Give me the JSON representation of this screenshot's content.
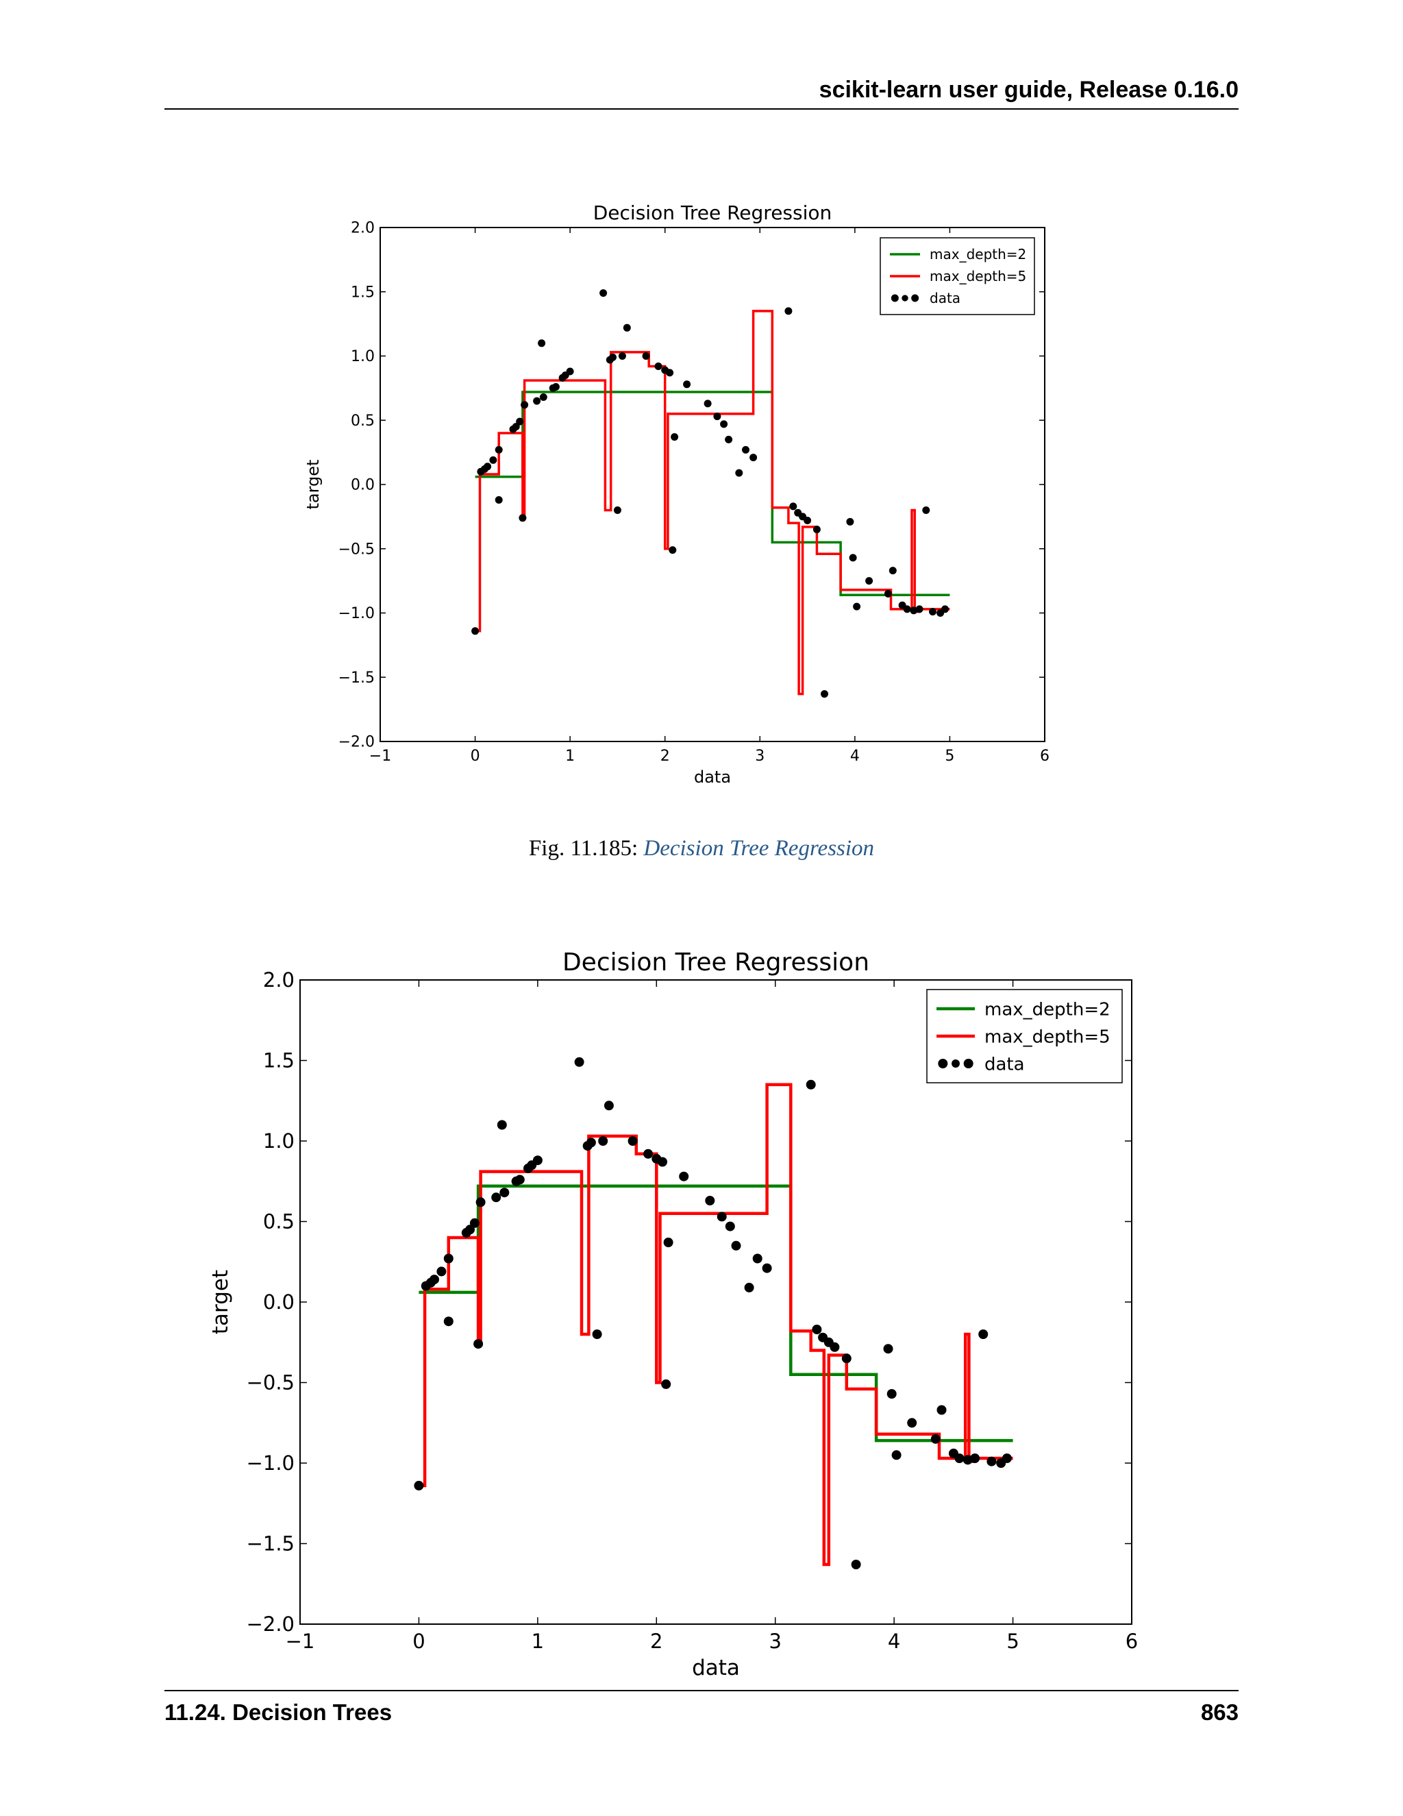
{
  "header": {
    "title": "scikit-learn user guide, Release 0.16.0"
  },
  "figure1": {
    "caption_prefix": "Fig.   11.185: ",
    "caption_link": "Decision Tree Regression"
  },
  "footer": {
    "section": "11.24.  Decision Trees",
    "page": "863"
  },
  "colors": {
    "depth2": "#008000",
    "depth5": "#ff0000",
    "data": "#000000",
    "caption_link": "#2a5a8a"
  },
  "chart_data": [
    {
      "type": "line",
      "title": "Decision Tree Regression",
      "xlabel": "data",
      "ylabel": "target",
      "xlim": [
        -1,
        6
      ],
      "ylim": [
        -2.0,
        2.0
      ],
      "xticks": [
        -1,
        0,
        1,
        2,
        3,
        4,
        5,
        6
      ],
      "yticks": [
        -2.0,
        -1.5,
        -1.0,
        -0.5,
        0.0,
        0.5,
        1.0,
        1.5,
        2.0
      ],
      "legend_position": "top-right",
      "series": [
        {
          "name": "max_depth=2",
          "kind": "step",
          "color": "#008000",
          "x": [
            0.0,
            0.5,
            0.5,
            3.13,
            3.13,
            3.85,
            3.85,
            5.0
          ],
          "y": [
            0.06,
            0.06,
            0.72,
            0.72,
            -0.45,
            -0.45,
            -0.86,
            -0.86
          ]
        },
        {
          "name": "max_depth=5",
          "kind": "step",
          "color": "#ff0000",
          "x": [
            0.0,
            0.05,
            0.05,
            0.25,
            0.25,
            0.5,
            0.5,
            0.52,
            0.52,
            1.37,
            1.37,
            1.43,
            1.43,
            1.83,
            1.83,
            2.0,
            2.0,
            2.03,
            2.03,
            2.07,
            2.07,
            2.93,
            2.93,
            3.13,
            3.13,
            3.3,
            3.3,
            3.41,
            3.41,
            3.45,
            3.45,
            3.6,
            3.6,
            3.85,
            3.85,
            4.38,
            4.38,
            4.6,
            4.6,
            4.63,
            4.63,
            4.68,
            4.68,
            5.0
          ],
          "y": [
            -1.14,
            -1.14,
            0.08,
            0.08,
            0.4,
            0.4,
            -0.26,
            -0.26,
            0.81,
            0.81,
            -0.2,
            -0.2,
            1.03,
            1.03,
            0.92,
            0.92,
            -0.5,
            -0.5,
            0.55,
            0.55,
            0.55,
            0.55,
            1.35,
            1.35,
            -0.18,
            -0.18,
            -0.3,
            -0.3,
            -1.63,
            -1.63,
            -0.33,
            -0.33,
            -0.54,
            -0.54,
            -0.82,
            -0.82,
            -0.97,
            -0.97,
            -0.2,
            -0.2,
            -0.99,
            -0.99,
            -0.97,
            -0.97
          ]
        },
        {
          "name": "data",
          "kind": "scatter",
          "color": "#000000",
          "x": [
            0.0,
            0.06,
            0.1,
            0.13,
            0.19,
            0.25,
            0.25,
            0.4,
            0.43,
            0.47,
            0.5,
            0.52,
            0.65,
            0.7,
            0.72,
            0.82,
            0.85,
            0.92,
            0.95,
            1.0,
            1.35,
            1.42,
            1.45,
            1.5,
            1.55,
            1.6,
            1.8,
            1.93,
            2.0,
            2.05,
            2.08,
            2.1,
            2.23,
            2.45,
            2.55,
            2.62,
            2.67,
            2.78,
            2.85,
            2.93,
            3.3,
            3.35,
            3.4,
            3.45,
            3.5,
            3.6,
            3.68,
            3.95,
            3.98,
            4.02,
            4.15,
            4.35,
            4.4,
            4.5,
            4.55,
            4.62,
            4.68,
            4.75,
            4.82,
            4.9,
            4.95
          ],
          "y": [
            -1.14,
            0.1,
            0.12,
            0.14,
            0.19,
            0.27,
            -0.12,
            0.43,
            0.45,
            0.49,
            -0.26,
            0.62,
            0.65,
            1.1,
            0.68,
            0.75,
            0.76,
            0.83,
            0.85,
            0.88,
            1.49,
            0.97,
            0.99,
            -0.2,
            1.0,
            1.22,
            1.0,
            0.92,
            0.89,
            0.87,
            -0.51,
            0.37,
            0.78,
            0.63,
            0.53,
            0.47,
            0.35,
            0.09,
            0.27,
            0.21,
            1.35,
            -0.17,
            -0.22,
            -0.25,
            -0.28,
            -0.35,
            -1.63,
            -0.29,
            -0.57,
            -0.95,
            -0.75,
            -0.85,
            -0.67,
            -0.94,
            -0.97,
            -0.98,
            -0.97,
            -0.2,
            -0.99,
            -1.0,
            -0.97
          ]
        }
      ]
    },
    {
      "type": "line",
      "title": "Decision Tree Regression",
      "xlabel": "data",
      "ylabel": "target",
      "xlim": [
        -1,
        6
      ],
      "ylim": [
        -2.0,
        2.0
      ],
      "xticks": [
        -1,
        0,
        1,
        2,
        3,
        4,
        5,
        6
      ],
      "yticks": [
        -2.0,
        -1.5,
        -1.0,
        -0.5,
        0.0,
        0.5,
        1.0,
        1.5,
        2.0
      ],
      "legend_position": "top-right",
      "series": [
        {
          "name": "max_depth=2",
          "kind": "step",
          "color": "#008000",
          "x": [
            0.0,
            0.5,
            0.5,
            3.13,
            3.13,
            3.85,
            3.85,
            5.0
          ],
          "y": [
            0.06,
            0.06,
            0.72,
            0.72,
            -0.45,
            -0.45,
            -0.86,
            -0.86
          ]
        },
        {
          "name": "max_depth=5",
          "kind": "step",
          "color": "#ff0000",
          "x": [
            0.0,
            0.05,
            0.05,
            0.25,
            0.25,
            0.5,
            0.5,
            0.52,
            0.52,
            1.37,
            1.37,
            1.43,
            1.43,
            1.83,
            1.83,
            2.0,
            2.0,
            2.03,
            2.03,
            2.07,
            2.07,
            2.93,
            2.93,
            3.13,
            3.13,
            3.3,
            3.3,
            3.41,
            3.41,
            3.45,
            3.45,
            3.6,
            3.6,
            3.85,
            3.85,
            4.38,
            4.38,
            4.6,
            4.6,
            4.63,
            4.63,
            4.68,
            4.68,
            5.0
          ],
          "y": [
            -1.14,
            -1.14,
            0.08,
            0.08,
            0.4,
            0.4,
            -0.26,
            -0.26,
            0.81,
            0.81,
            -0.2,
            -0.2,
            1.03,
            1.03,
            0.92,
            0.92,
            -0.5,
            -0.5,
            0.55,
            0.55,
            0.55,
            0.55,
            1.35,
            1.35,
            -0.18,
            -0.18,
            -0.3,
            -0.3,
            -1.63,
            -1.63,
            -0.33,
            -0.33,
            -0.54,
            -0.54,
            -0.82,
            -0.82,
            -0.97,
            -0.97,
            -0.2,
            -0.2,
            -0.99,
            -0.99,
            -0.97,
            -0.97
          ]
        },
        {
          "name": "data",
          "kind": "scatter",
          "color": "#000000",
          "x": [
            0.0,
            0.06,
            0.1,
            0.13,
            0.19,
            0.25,
            0.25,
            0.4,
            0.43,
            0.47,
            0.5,
            0.52,
            0.65,
            0.7,
            0.72,
            0.82,
            0.85,
            0.92,
            0.95,
            1.0,
            1.35,
            1.42,
            1.45,
            1.5,
            1.55,
            1.6,
            1.8,
            1.93,
            2.0,
            2.05,
            2.08,
            2.1,
            2.23,
            2.45,
            2.55,
            2.62,
            2.67,
            2.78,
            2.85,
            2.93,
            3.3,
            3.35,
            3.4,
            3.45,
            3.5,
            3.6,
            3.68,
            3.95,
            3.98,
            4.02,
            4.15,
            4.35,
            4.4,
            4.5,
            4.55,
            4.62,
            4.68,
            4.75,
            4.82,
            4.9,
            4.95
          ],
          "y": [
            -1.14,
            0.1,
            0.12,
            0.14,
            0.19,
            0.27,
            -0.12,
            0.43,
            0.45,
            0.49,
            -0.26,
            0.62,
            0.65,
            1.1,
            0.68,
            0.75,
            0.76,
            0.83,
            0.85,
            0.88,
            1.49,
            0.97,
            0.99,
            -0.2,
            1.0,
            1.22,
            1.0,
            0.92,
            0.89,
            0.87,
            -0.51,
            0.37,
            0.78,
            0.63,
            0.53,
            0.47,
            0.35,
            0.09,
            0.27,
            0.21,
            1.35,
            -0.17,
            -0.22,
            -0.25,
            -0.28,
            -0.35,
            -1.63,
            -0.29,
            -0.57,
            -0.95,
            -0.75,
            -0.85,
            -0.67,
            -0.94,
            -0.97,
            -0.98,
            -0.97,
            -0.2,
            -0.99,
            -1.0,
            -0.97
          ]
        }
      ]
    }
  ]
}
